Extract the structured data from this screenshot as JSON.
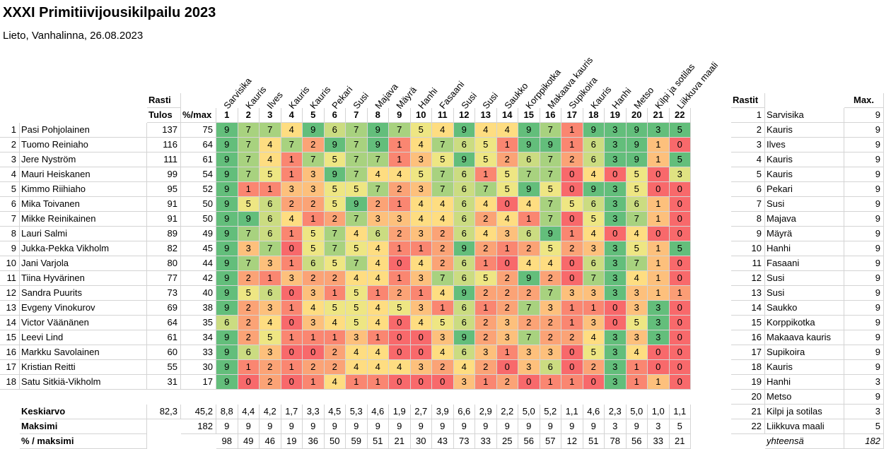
{
  "title": "XXXI Primitiivijousikilpailu 2023",
  "subtitle": "Lieto, Vanhalinna, 26.08.2023",
  "header": {
    "rasti": "Rasti",
    "tulos": "Tulos",
    "pct_max": "%/max"
  },
  "stations": [
    {
      "no": "1",
      "name": "Sarvisika"
    },
    {
      "no": "2",
      "name": "Kauris"
    },
    {
      "no": "3",
      "name": "Ilves"
    },
    {
      "no": "4",
      "name": "Kauris"
    },
    {
      "no": "5",
      "name": "Kauris"
    },
    {
      "no": "6",
      "name": "Pekari"
    },
    {
      "no": "7",
      "name": "Susi"
    },
    {
      "no": "8",
      "name": "Majava"
    },
    {
      "no": "9",
      "name": "Mäyrä"
    },
    {
      "no": "10",
      "name": "Hanhi"
    },
    {
      "no": "11",
      "name": "Fasaani"
    },
    {
      "no": "12",
      "name": "Susi"
    },
    {
      "no": "13",
      "name": "Susi"
    },
    {
      "no": "14",
      "name": "Saukko"
    },
    {
      "no": "15",
      "name": "Korppikotka"
    },
    {
      "no": "16",
      "name": "Makaava kauris"
    },
    {
      "no": "17",
      "name": "Supikoira"
    },
    {
      "no": "18",
      "name": "Kauris"
    },
    {
      "no": "19",
      "name": "Hanhi"
    },
    {
      "no": "20",
      "name": "Metso"
    },
    {
      "no": "21",
      "name": "Kilpi ja sotilas"
    },
    {
      "no": "22",
      "name": "Liikkuva maali"
    }
  ],
  "rows": [
    {
      "rank": "1",
      "name": "Pasi Pohjolainen",
      "tulos": "137",
      "pct": "75",
      "scores": [
        "9",
        "7",
        "7",
        "4",
        "9",
        "6",
        "7",
        "9",
        "7",
        "5",
        "4",
        "9",
        "4",
        "4",
        "9",
        "7",
        "1",
        "9",
        "3",
        "9",
        "3",
        "5"
      ]
    },
    {
      "rank": "2",
      "name": "Tuomo Reiniaho",
      "tulos": "116",
      "pct": "64",
      "scores": [
        "9",
        "7",
        "4",
        "7",
        "2",
        "9",
        "7",
        "9",
        "1",
        "4",
        "7",
        "6",
        "5",
        "1",
        "9",
        "9",
        "1",
        "6",
        "3",
        "9",
        "1",
        "0"
      ]
    },
    {
      "rank": "3",
      "name": "Jere Nyström",
      "tulos": "111",
      "pct": "61",
      "scores": [
        "9",
        "7",
        "4",
        "1",
        "7",
        "5",
        "7",
        "7",
        "1",
        "3",
        "5",
        "9",
        "5",
        "2",
        "6",
        "7",
        "2",
        "6",
        "3",
        "9",
        "1",
        "5"
      ]
    },
    {
      "rank": "4",
      "name": "Mauri Heiskanen",
      "tulos": "99",
      "pct": "54",
      "scores": [
        "9",
        "7",
        "5",
        "1",
        "3",
        "9",
        "7",
        "4",
        "4",
        "5",
        "7",
        "6",
        "1",
        "5",
        "7",
        "7",
        "0",
        "4",
        "0",
        "5",
        "0",
        "3"
      ]
    },
    {
      "rank": "5",
      "name": "Kimmo Riihiaho",
      "tulos": "95",
      "pct": "52",
      "scores": [
        "9",
        "1",
        "1",
        "3",
        "3",
        "5",
        "5",
        "7",
        "2",
        "3",
        "7",
        "6",
        "7",
        "5",
        "9",
        "5",
        "0",
        "9",
        "3",
        "5",
        "0",
        "0"
      ]
    },
    {
      "rank": "6",
      "name": "Mika Toivanen",
      "tulos": "91",
      "pct": "50",
      "scores": [
        "9",
        "5",
        "6",
        "2",
        "2",
        "5",
        "9",
        "2",
        "1",
        "4",
        "4",
        "6",
        "4",
        "0",
        "4",
        "7",
        "5",
        "6",
        "3",
        "6",
        "1",
        "0"
      ]
    },
    {
      "rank": "7",
      "name": "Mikke Reinikainen",
      "tulos": "91",
      "pct": "50",
      "scores": [
        "9",
        "9",
        "6",
        "4",
        "1",
        "2",
        "7",
        "3",
        "3",
        "4",
        "4",
        "6",
        "2",
        "4",
        "1",
        "7",
        "0",
        "5",
        "3",
        "7",
        "1",
        "0"
      ]
    },
    {
      "rank": "8",
      "name": "Lauri Salmi",
      "tulos": "89",
      "pct": "49",
      "scores": [
        "9",
        "7",
        "6",
        "1",
        "5",
        "7",
        "4",
        "6",
        "2",
        "3",
        "2",
        "6",
        "4",
        "3",
        "6",
        "9",
        "1",
        "4",
        "0",
        "4",
        "0",
        "0"
      ]
    },
    {
      "rank": "9",
      "name": "Jukka-Pekka Vikholm",
      "tulos": "82",
      "pct": "45",
      "scores": [
        "9",
        "3",
        "7",
        "0",
        "5",
        "7",
        "5",
        "4",
        "1",
        "1",
        "2",
        "9",
        "2",
        "1",
        "2",
        "5",
        "2",
        "3",
        "3",
        "5",
        "1",
        "5"
      ]
    },
    {
      "rank": "10",
      "name": "Jani Varjola",
      "tulos": "80",
      "pct": "44",
      "scores": [
        "9",
        "7",
        "3",
        "1",
        "6",
        "5",
        "7",
        "4",
        "0",
        "4",
        "2",
        "6",
        "1",
        "0",
        "4",
        "4",
        "0",
        "6",
        "3",
        "7",
        "1",
        "0"
      ]
    },
    {
      "rank": "11",
      "name": "Tiina Hyvärinen",
      "tulos": "77",
      "pct": "42",
      "scores": [
        "9",
        "2",
        "1",
        "3",
        "2",
        "2",
        "4",
        "4",
        "1",
        "3",
        "7",
        "6",
        "5",
        "2",
        "9",
        "2",
        "0",
        "7",
        "3",
        "4",
        "1",
        "0"
      ]
    },
    {
      "rank": "12",
      "name": "Sandra Puurits",
      "tulos": "73",
      "pct": "40",
      "scores": [
        "9",
        "5",
        "6",
        "0",
        "3",
        "1",
        "5",
        "1",
        "2",
        "1",
        "4",
        "9",
        "2",
        "2",
        "2",
        "7",
        "3",
        "3",
        "3",
        "3",
        "1",
        "1"
      ]
    },
    {
      "rank": "13",
      "name": "Evgeny Vinokurov",
      "tulos": "69",
      "pct": "38",
      "scores": [
        "9",
        "2",
        "3",
        "1",
        "4",
        "5",
        "5",
        "4",
        "5",
        "3",
        "1",
        "6",
        "1",
        "2",
        "7",
        "3",
        "1",
        "1",
        "0",
        "3",
        "3",
        "0"
      ]
    },
    {
      "rank": "14",
      "name": "Victor Väänänen",
      "tulos": "64",
      "pct": "35",
      "scores": [
        "6",
        "2",
        "4",
        "0",
        "3",
        "4",
        "5",
        "4",
        "0",
        "4",
        "5",
        "6",
        "2",
        "3",
        "2",
        "2",
        "1",
        "3",
        "0",
        "5",
        "3",
        "0"
      ]
    },
    {
      "rank": "15",
      "name": "Leevi Lind",
      "tulos": "61",
      "pct": "34",
      "scores": [
        "9",
        "2",
        "5",
        "1",
        "1",
        "1",
        "3",
        "1",
        "0",
        "0",
        "3",
        "9",
        "2",
        "3",
        "7",
        "2",
        "2",
        "4",
        "3",
        "3",
        "3",
        "0"
      ]
    },
    {
      "rank": "16",
      "name": "Markku Savolainen",
      "tulos": "60",
      "pct": "33",
      "scores": [
        "9",
        "6",
        "3",
        "0",
        "0",
        "2",
        "4",
        "4",
        "0",
        "0",
        "4",
        "6",
        "3",
        "1",
        "3",
        "3",
        "0",
        "5",
        "3",
        "4",
        "0",
        "0"
      ]
    },
    {
      "rank": "17",
      "name": "Kristian Reitti",
      "tulos": "55",
      "pct": "30",
      "scores": [
        "9",
        "1",
        "2",
        "1",
        "2",
        "2",
        "4",
        "4",
        "4",
        "3",
        "2",
        "4",
        "2",
        "0",
        "3",
        "6",
        "0",
        "2",
        "3",
        "1",
        "0",
        "0"
      ]
    },
    {
      "rank": "18",
      "name": "Satu Sitkiä-Vikholm",
      "tulos": "31",
      "pct": "17",
      "scores": [
        "9",
        "0",
        "2",
        "0",
        "1",
        "4",
        "1",
        "1",
        "0",
        "0",
        "0",
        "3",
        "1",
        "2",
        "0",
        "1",
        "1",
        "0",
        "3",
        "1",
        "1",
        "0"
      ]
    }
  ],
  "summary": {
    "keskiarvo": {
      "label": "Keskiarvo",
      "tulos": "82,3",
      "pct": "45,2",
      "values": [
        "8,8",
        "4,4",
        "4,2",
        "1,7",
        "3,3",
        "4,5",
        "5,3",
        "4,6",
        "1,9",
        "2,7",
        "3,9",
        "6,6",
        "2,9",
        "2,2",
        "5,0",
        "5,2",
        "1,1",
        "4,6",
        "2,3",
        "5,0",
        "1,0",
        "1,1"
      ]
    },
    "maksimi": {
      "label": "Maksimi",
      "pct": "182",
      "values": [
        "9",
        "9",
        "9",
        "9",
        "9",
        "9",
        "9",
        "9",
        "9",
        "9",
        "9",
        "9",
        "9",
        "9",
        "9",
        "9",
        "9",
        "9",
        "3",
        "9",
        "3",
        "5"
      ]
    },
    "pct_maksimi": {
      "label": "% / maksimi",
      "values": [
        "98",
        "49",
        "46",
        "19",
        "36",
        "50",
        "59",
        "51",
        "21",
        "30",
        "43",
        "73",
        "33",
        "25",
        "56",
        "57",
        "12",
        "51",
        "78",
        "56",
        "33",
        "21"
      ]
    }
  },
  "legend": {
    "header_rastit": "Rastit",
    "header_max": "Max.",
    "items": [
      {
        "no": "1",
        "name": "Sarvisika",
        "max": "9"
      },
      {
        "no": "2",
        "name": "Kauris",
        "max": "9"
      },
      {
        "no": "3",
        "name": "Ilves",
        "max": "9"
      },
      {
        "no": "4",
        "name": "Kauris",
        "max": "9"
      },
      {
        "no": "5",
        "name": "Kauris",
        "max": "9"
      },
      {
        "no": "6",
        "name": "Pekari",
        "max": "9"
      },
      {
        "no": "7",
        "name": "Susi",
        "max": "9"
      },
      {
        "no": "8",
        "name": "Majava",
        "max": "9"
      },
      {
        "no": "9",
        "name": "Mäyrä",
        "max": "9"
      },
      {
        "no": "10",
        "name": "Hanhi",
        "max": "9"
      },
      {
        "no": "11",
        "name": "Fasaani",
        "max": "9"
      },
      {
        "no": "12",
        "name": "Susi",
        "max": "9"
      },
      {
        "no": "13",
        "name": "Susi",
        "max": "9"
      },
      {
        "no": "14",
        "name": "Saukko",
        "max": "9"
      },
      {
        "no": "15",
        "name": "Korppikotka",
        "max": "9"
      },
      {
        "no": "16",
        "name": "Makaava kauris",
        "max": "9"
      },
      {
        "no": "17",
        "name": "Supikoira",
        "max": "9"
      },
      {
        "no": "18",
        "name": "Kauris",
        "max": "9"
      },
      {
        "no": "19",
        "name": "Hanhi",
        "max": "3"
      },
      {
        "no": "20",
        "name": "Metso",
        "max": "9"
      },
      {
        "no": "21",
        "name": "Kilpi ja sotilas",
        "max": "3"
      },
      {
        "no": "22",
        "name": "Liikkuva maali",
        "max": "5"
      }
    ],
    "total_label": "yhteensä",
    "total": "182"
  },
  "colors": {
    "high": "#63be7b",
    "mid": "#ffeb84",
    "low": "#f8696b",
    "grid": "#d4d4d4"
  }
}
